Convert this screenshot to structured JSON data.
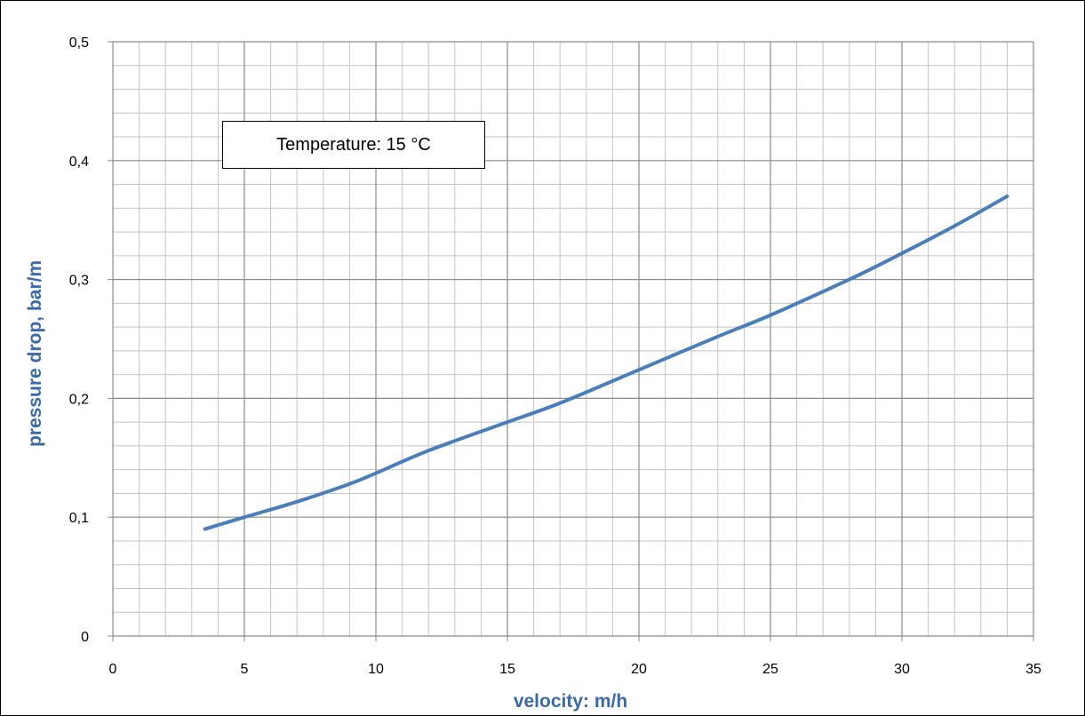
{
  "chart_data": {
    "type": "line",
    "title": "",
    "xlabel": "velocity:   m/h",
    "ylabel": "pressure drop,   bar/m",
    "xlim": [
      0,
      35
    ],
    "ylim": [
      0,
      0.5
    ],
    "x_ticks": [
      "0",
      "5",
      "10",
      "15",
      "20",
      "25",
      "30",
      "35"
    ],
    "y_ticks": [
      "0",
      "0,1",
      "0,2",
      "0,3",
      "0,4",
      "0,5"
    ],
    "grid": true,
    "annotation": "Temperature: 15 °C",
    "series": [
      {
        "color": "#4a7ebb",
        "x": [
          3.5,
          5,
          7,
          9,
          10,
          12,
          15,
          17,
          20,
          23,
          25,
          28,
          30,
          32,
          34
        ],
        "y": [
          0.09,
          0.1,
          0.113,
          0.128,
          0.137,
          0.156,
          0.18,
          0.196,
          0.224,
          0.252,
          0.27,
          0.3,
          0.322,
          0.345,
          0.37
        ]
      }
    ]
  }
}
